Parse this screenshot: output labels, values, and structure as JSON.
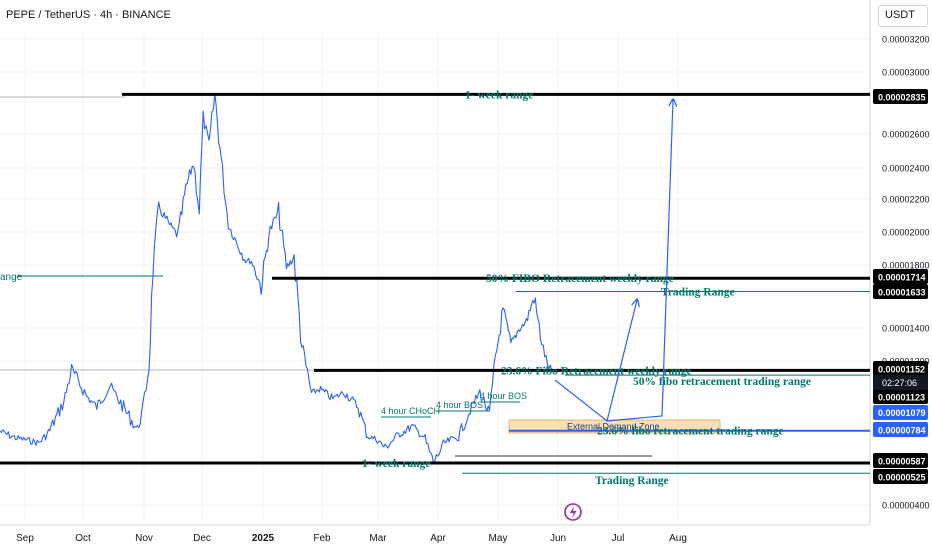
{
  "header": {
    "symbol_title": "PEPE / TetherUS · 4h · BINANCE",
    "currency_button": "USDT",
    "countdown": "02:27:06"
  },
  "colors": {
    "candle": "#2962ff",
    "annotation_text": "#00796b",
    "level_line": "#000000",
    "arrow": "#2962ff",
    "demand_zone_fill": "#fbd9a8",
    "demand_zone_border": "#e6a85a",
    "countdown_bg": "#131722",
    "blue_tag": "#2962ff"
  },
  "icons": {
    "watermark": "lightning-logo-icon"
  },
  "chart_data": {
    "type": "line",
    "title": "PEPE / TetherUS · 4h · BINANCE",
    "x_tick_labels": [
      "Sep",
      "Oct",
      "Nov",
      "Dec",
      "2025",
      "Feb",
      "Mar",
      "Apr",
      "May",
      "Jun",
      "Jul",
      "Aug"
    ],
    "y_tick_labels": [
      "0.00003200",
      "0.00003000",
      "0.00002600",
      "0.00002400",
      "0.00002200",
      "0.00002000",
      "0.00001800",
      "0.00001400",
      "0.00001200",
      "0.00000400"
    ],
    "ylim": [
      3.6e-06,
      3.34e-05
    ],
    "grid": true,
    "series": [
      {
        "x": [
          "2024-08-26",
          "2024-09-03",
          "2024-09-08",
          "2024-09-15",
          "2024-09-20",
          "2024-09-28",
          "2024-10-02",
          "2024-10-10",
          "2024-10-15",
          "2024-10-22",
          "2024-10-26",
          "2024-11-05",
          "2024-11-08",
          "2024-11-11",
          "2024-11-13",
          "2024-11-16",
          "2024-11-21",
          "2024-11-26",
          "2024-11-30",
          "2024-12-04",
          "2024-12-07",
          "2024-12-09",
          "2024-12-12",
          "2024-12-15",
          "2024-12-19",
          "2024-12-22",
          "2024-12-26",
          "2024-12-31",
          "2025-01-03",
          "2025-01-08",
          "2025-01-12",
          "2025-01-17",
          "2025-01-21",
          "2025-01-25",
          "2025-01-29",
          "2025-02-03",
          "2025-02-07",
          "2025-02-14",
          "2025-02-20",
          "2025-02-27",
          "2025-03-04",
          "2025-03-09",
          "2025-03-13",
          "2025-03-20",
          "2025-03-27",
          "2025-04-02",
          "2025-04-07",
          "2025-04-13",
          "2025-04-20",
          "2025-04-26",
          "2025-05-01",
          "2025-05-06",
          "2025-05-09",
          "2025-05-13",
          "2025-05-17",
          "2025-05-21",
          "2025-05-25",
          "2025-05-29",
          "2025-06-02",
          "2025-06-05",
          "2025-06-07"
        ],
        "values": [
          7.8e-06,
          7.4e-06,
          7.3e-06,
          7.1e-06,
          7.7e-06,
          9.6e-06,
          1.16e-05,
          9.9e-06,
          9.3e-06,
          1.06e-05,
          9.8e-06,
          7.9e-06,
          9.2e-06,
          1.18e-05,
          1.76e-05,
          2.15e-05,
          2.05e-05,
          1.97e-05,
          2.26e-05,
          2.42e-05,
          2.13e-05,
          2.7e-05,
          2.52e-05,
          2.83e-05,
          2.36e-05,
          2.04e-05,
          1.94e-05,
          1.82e-05,
          1.82e-05,
          1.66e-05,
          1.99e-05,
          2.12e-05,
          1.78e-05,
          1.84e-05,
          1.3e-05,
          1.01e-05,
          1.04e-05,
          9.8e-06,
          1.02e-05,
          9.3e-06,
          7.5e-06,
          7.3e-06,
          6.8e-06,
          7.6e-06,
          8.1e-06,
          7.5e-06,
          5.9e-06,
          7.1e-06,
          7.5e-06,
          9.1e-06,
          1.02e-05,
          8.8e-06,
          1.22e-05,
          1.52e-05,
          1.31e-05,
          1.4e-05,
          1.45e-05,
          1.6e-05,
          1.32e-05,
          1.18e-05,
          1.16e-05
        ]
      }
    ],
    "price_levels": [
      {
        "label": "1- week range",
        "value": 2.835e-05,
        "tag": "0.00002835"
      },
      {
        "label": "50% FIBO Retracement weekly range",
        "value": 1.714e-05,
        "tag": "0.00001714"
      },
      {
        "label": "Trading Range",
        "value": 1.633e-05,
        "tag": "0.00001633"
      },
      {
        "label": "23.6% Fibo Retracement weekly range",
        "value": 1.152e-05,
        "tag": "0.00001152"
      },
      {
        "label": "50% fibo retracement trading range",
        "value": 1.123e-05,
        "tag": "0.00001123"
      },
      {
        "label": "23.6% fibo retracement trading range",
        "value": 7.84e-06,
        "tag": "0.00000784"
      },
      {
        "label": "1- week range",
        "value": 5.87e-06,
        "tag": "0.00000587"
      },
      {
        "label": "Trading Range",
        "value": 5.25e-06,
        "tag": "0.00000525"
      }
    ],
    "current_price_tag": "0.00001079",
    "left_edge_label": "ange",
    "structure_labels": [
      "4 hour CHoCH",
      "4 hour BOS",
      "4 hour BOS"
    ],
    "zone_label": "External Demand Zone"
  }
}
